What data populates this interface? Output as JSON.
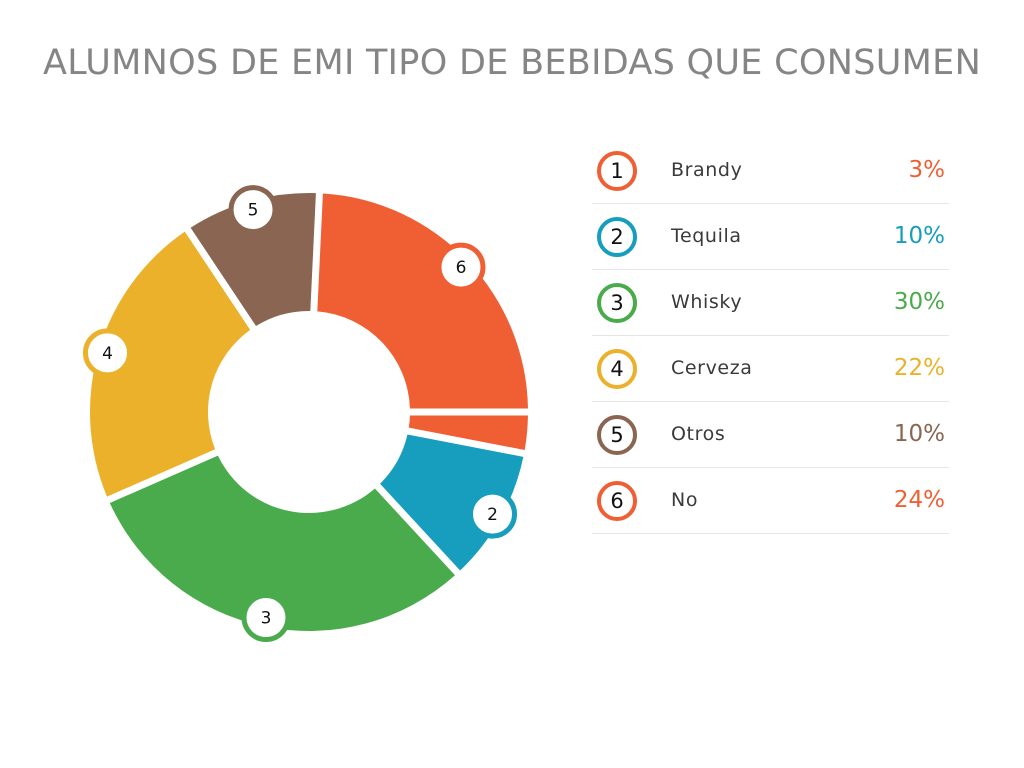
{
  "chart_data": {
    "type": "pie",
    "title": "ALUMNOS DE EMI TIPO DE BEBIDAS QUE CONSUMEN",
    "labels": [
      "Brandy",
      "Tequila",
      "Whisky",
      "Cerveza",
      "Otros",
      "No"
    ],
    "numbers": [
      "1",
      "2",
      "3",
      "4",
      "5",
      "6"
    ],
    "values": [
      3,
      10,
      30,
      22,
      10,
      24
    ],
    "value_labels": [
      "3%",
      "10%",
      "30%",
      "22%",
      "10%",
      "24%"
    ],
    "colors": [
      "#f05f34",
      "#179dbd",
      "#49ab4b",
      "#ebb12b",
      "#8a6552",
      "#f05f34"
    ],
    "style": "donut",
    "legend_position": "right"
  }
}
